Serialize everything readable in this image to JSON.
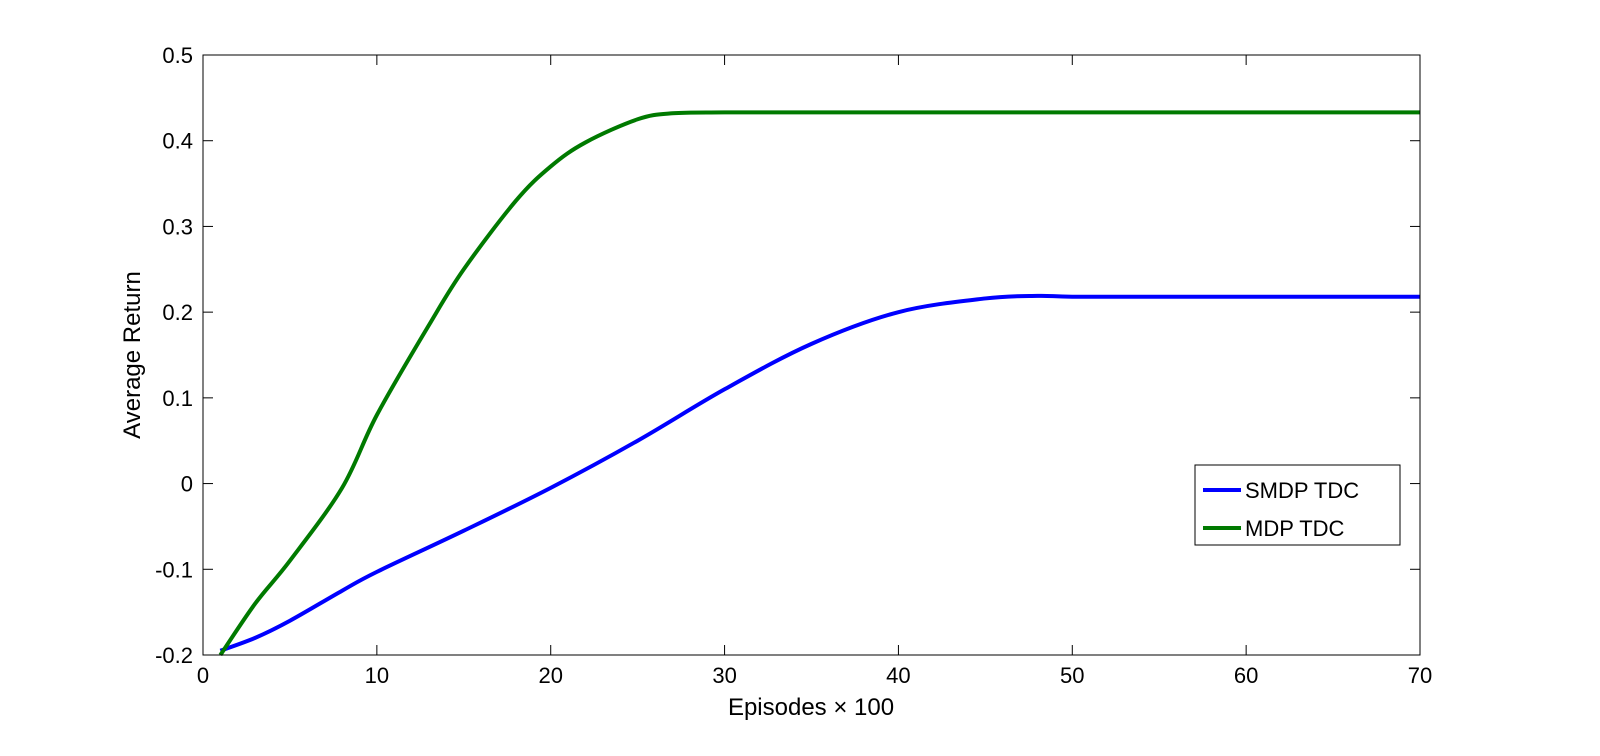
{
  "chart_data": {
    "type": "line",
    "xlabel": "Episodes × 100",
    "ylabel": "Average Return",
    "xlim": [
      0,
      70
    ],
    "ylim": [
      -0.2,
      0.5
    ],
    "xticks": [
      0,
      10,
      20,
      30,
      40,
      50,
      60,
      70
    ],
    "xtick_labels": [
      "0",
      "10",
      "20",
      "30",
      "40",
      "50",
      "60",
      "70"
    ],
    "yticks": [
      -0.2,
      -0.1,
      0,
      0.1,
      0.2,
      0.3,
      0.4,
      0.5
    ],
    "ytick_labels": [
      "-0.2",
      "-0.1",
      "0",
      "0.1",
      "0.2",
      "0.3",
      "0.4",
      "0.5"
    ],
    "grid": false,
    "legend_position": "lower-right",
    "series": [
      {
        "name": "SMDP TDC",
        "color": "#0000ff",
        "x": [
          1,
          3,
          5,
          8,
          10,
          15,
          20,
          25,
          30,
          35,
          40,
          45,
          48,
          50,
          55,
          60,
          65,
          70
        ],
        "y": [
          -0.195,
          -0.18,
          -0.16,
          -0.125,
          -0.103,
          -0.055,
          -0.005,
          0.05,
          0.11,
          0.163,
          0.2,
          0.216,
          0.219,
          0.218,
          0.218,
          0.218,
          0.218,
          0.218
        ]
      },
      {
        "name": "MDP TDC",
        "color": "#007a00",
        "x": [
          1,
          3,
          5,
          8,
          10,
          13,
          15,
          18,
          20,
          22,
          25,
          27,
          30,
          35,
          40,
          50,
          60,
          70
        ],
        "y": [
          -0.2,
          -0.14,
          -0.09,
          -0.005,
          0.08,
          0.185,
          0.25,
          0.33,
          0.37,
          0.398,
          0.425,
          0.432,
          0.433,
          0.433,
          0.433,
          0.433,
          0.433,
          0.433
        ]
      }
    ]
  }
}
